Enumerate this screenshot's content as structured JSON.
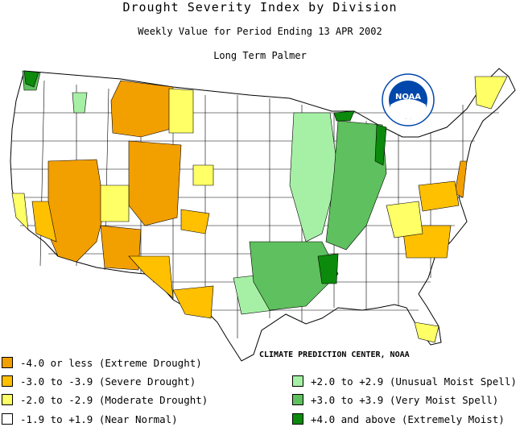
{
  "header": {
    "title": "Drought Severity Index by Division",
    "subtitle": "Weekly Value for Period Ending 13 APR 2002",
    "index_name": "Long Term Palmer"
  },
  "logo": {
    "text": "NOAA"
  },
  "credit": "CLIMATE PREDICTION CENTER, NOAA",
  "legend": {
    "left": [
      {
        "label": "-4.0 or less (Extreme Drought)",
        "color": "#f29f00"
      },
      {
        "label": "-3.0 to -3.9 (Severe Drought)",
        "color": "#ffc000"
      },
      {
        "label": "-2.0 to -2.9 (Moderate Drought)",
        "color": "#ffff66"
      },
      {
        "label": "-1.9 to +1.9 (Near Normal)",
        "color": "#ffffff"
      }
    ],
    "right": [
      {
        "label": "+2.0 to +2.9 (Unusual Moist Spell)",
        "color": "#a6f0a6"
      },
      {
        "label": "+3.0 to +3.9 (Very Moist Spell)",
        "color": "#5ec05e"
      },
      {
        "label": "+4.0 and above (Extremely Moist)",
        "color": "#0b8a0b"
      }
    ]
  }
}
